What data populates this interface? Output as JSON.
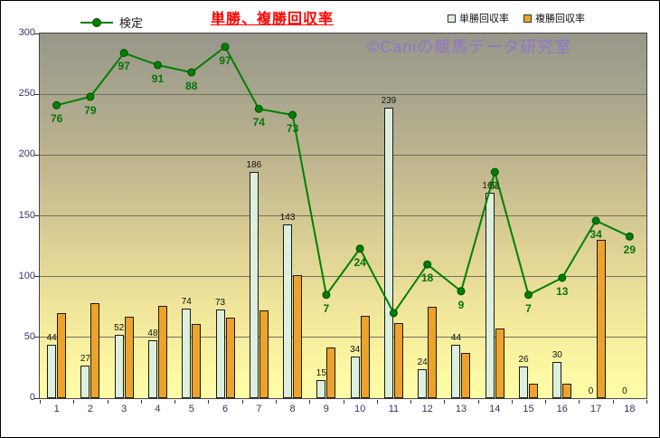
{
  "title": "単勝、複勝回収率",
  "legend": {
    "kentei": "検定",
    "tansho": "単勝回収率",
    "fukusho": "複勝回収率"
  },
  "watermark": "©Caniの競馬データ研究室",
  "colors": {
    "title": "#ff0000",
    "tansho_bar": "#ddefdd",
    "fukusho_bar": "#eda22b",
    "line": "#008000",
    "line_label": "#057405",
    "watermark": "rgba(142,112,214,0.85)",
    "axis_text": "#333366"
  },
  "chart_data": {
    "type": "bar",
    "subtype": "grouped bars with overlaid line (combo chart)",
    "title": "単勝、複勝回収率",
    "categories": [
      "1",
      "2",
      "3",
      "4",
      "5",
      "6",
      "7",
      "8",
      "9",
      "10",
      "11",
      "12",
      "13",
      "14",
      "15",
      "16",
      "17",
      "18"
    ],
    "ylim": [
      0,
      300
    ],
    "yticks": [
      0,
      50,
      100,
      150,
      200,
      250,
      300
    ],
    "grid": "horizontal",
    "legend_position": "top",
    "series": [
      {
        "name": "単勝回収率",
        "type": "bar",
        "values": [
          44,
          27,
          52,
          48,
          74,
          73,
          186,
          143,
          15,
          34,
          239,
          24,
          44,
          169,
          26,
          30,
          0,
          0
        ],
        "data_labels": true
      },
      {
        "name": "複勝回収率",
        "type": "bar",
        "values": [
          70,
          78,
          67,
          76,
          61,
          66,
          72,
          101,
          42,
          68,
          62,
          75,
          37,
          57,
          12,
          12,
          130,
          0
        ],
        "data_labels": false
      },
      {
        "name": "検定",
        "type": "line",
        "labels": [
          "76",
          "79",
          "97",
          "91",
          "88",
          "97",
          "74",
          "73",
          "7",
          "24",
          "",
          "18",
          "9",
          "51",
          "7",
          "13",
          "34",
          "29"
        ],
        "plotted_values": [
          241,
          248,
          284,
          274,
          268,
          289,
          238,
          233,
          85,
          123,
          70,
          110,
          88,
          186,
          85,
          99,
          146,
          133
        ],
        "note": "plotted_values are positions on the 0-300 axis estimated from the image; labels are the printed 検定 values"
      }
    ]
  }
}
